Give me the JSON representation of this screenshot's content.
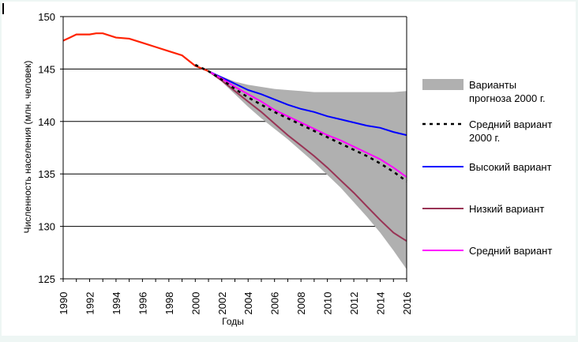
{
  "chart_data": {
    "type": "line",
    "xlabel": "Годы",
    "ylabel": "Численность населения (млн. человек)",
    "xlim": [
      1990,
      2016
    ],
    "ylim": [
      125,
      150
    ],
    "x_ticks": [
      "1990",
      "1992",
      "1994",
      "1996",
      "1998",
      "2000",
      "2002",
      "2004",
      "2006",
      "2008",
      "2010",
      "2012",
      "2014",
      "2016"
    ],
    "y_ticks": [
      "125",
      "130",
      "135",
      "140",
      "145",
      "150"
    ],
    "gridlines_y": [
      130,
      135,
      140,
      145,
      150
    ],
    "legend_position": "right",
    "colors": {
      "history": "#ff2200",
      "band": "#b0b0b0",
      "mid2000": "#000000",
      "high": "#0000ff",
      "low": "#993355",
      "mid": "#ff00ff"
    },
    "history": {
      "x": [
        1990,
        1990.5,
        1991,
        1992,
        1992.5,
        1993,
        1994,
        1995,
        1996,
        1997,
        1998,
        1999,
        2000,
        2001
      ],
      "values": [
        147.7,
        148.0,
        148.3,
        148.3,
        148.4,
        148.4,
        148.0,
        147.9,
        147.5,
        147.1,
        146.7,
        146.3,
        145.3,
        144.8
      ]
    },
    "band": {
      "x": [
        2001,
        2002,
        2003,
        2004,
        2005,
        2006,
        2007,
        2008,
        2009,
        2010,
        2011,
        2012,
        2013,
        2014,
        2015,
        2016
      ],
      "upper": [
        144.8,
        144.3,
        143.8,
        143.5,
        143.3,
        143.1,
        143.0,
        142.9,
        142.8,
        142.8,
        142.8,
        142.8,
        142.8,
        142.8,
        142.8,
        142.9
      ],
      "lower": [
        144.8,
        143.8,
        142.6,
        141.4,
        140.3,
        139.3,
        138.3,
        137.2,
        136.1,
        134.9,
        133.7,
        132.3,
        130.9,
        129.4,
        127.7,
        125.9
      ]
    },
    "series": [
      {
        "name": "Варианты прогноза 2000 г.",
        "key": "band"
      },
      {
        "name": "Средний вариант 2000 г.",
        "key": "mid2000",
        "x": [
          2000,
          2001,
          2002,
          2003,
          2004,
          2005,
          2006,
          2007,
          2008,
          2009,
          2010,
          2011,
          2012,
          2013,
          2014,
          2015,
          2016
        ],
        "values": [
          145.4,
          144.8,
          144.0,
          143.1,
          142.3,
          141.6,
          140.9,
          140.3,
          139.7,
          139.1,
          138.5,
          137.9,
          137.3,
          136.7,
          136.0,
          135.2,
          134.3
        ]
      },
      {
        "name": "Высокий вариант",
        "key": "high",
        "x": [
          2001,
          2002,
          2003,
          2004,
          2005,
          2006,
          2007,
          2008,
          2009,
          2010,
          2011,
          2012,
          2013,
          2014,
          2015,
          2016
        ],
        "values": [
          144.8,
          144.2,
          143.6,
          143.0,
          142.6,
          142.1,
          141.6,
          141.2,
          140.9,
          140.5,
          140.2,
          139.9,
          139.6,
          139.4,
          139.0,
          138.7
        ]
      },
      {
        "name": "Низкий вариант",
        "key": "low",
        "x": [
          2001,
          2002,
          2003,
          2004,
          2005,
          2006,
          2007,
          2008,
          2009,
          2010,
          2011,
          2012,
          2013,
          2014,
          2015,
          2016
        ],
        "values": [
          144.8,
          143.9,
          142.9,
          141.9,
          140.9,
          139.8,
          138.7,
          137.7,
          136.7,
          135.6,
          134.4,
          133.2,
          131.9,
          130.6,
          129.4,
          128.6
        ]
      },
      {
        "name": "Средний вариант",
        "key": "mid",
        "x": [
          2001,
          2002,
          2003,
          2004,
          2005,
          2006,
          2007,
          2008,
          2009,
          2010,
          2011,
          2012,
          2013,
          2014,
          2015,
          2016
        ],
        "values": [
          144.8,
          144.1,
          143.3,
          142.6,
          141.9,
          141.1,
          140.5,
          139.9,
          139.3,
          138.7,
          138.2,
          137.6,
          137.0,
          136.4,
          135.6,
          134.7
        ]
      }
    ],
    "legend": [
      {
        "key": "band",
        "lines": [
          "Варианты",
          "прогноза 2000 г."
        ]
      },
      {
        "key": "mid2000",
        "lines": [
          "Средний вариант",
          "2000 г."
        ]
      },
      {
        "key": "high",
        "lines": [
          "Высокий вариант"
        ]
      },
      {
        "key": "low",
        "lines": [
          "Низкий вариант"
        ]
      },
      {
        "key": "mid",
        "lines": [
          "Средний вариант"
        ]
      }
    ]
  }
}
